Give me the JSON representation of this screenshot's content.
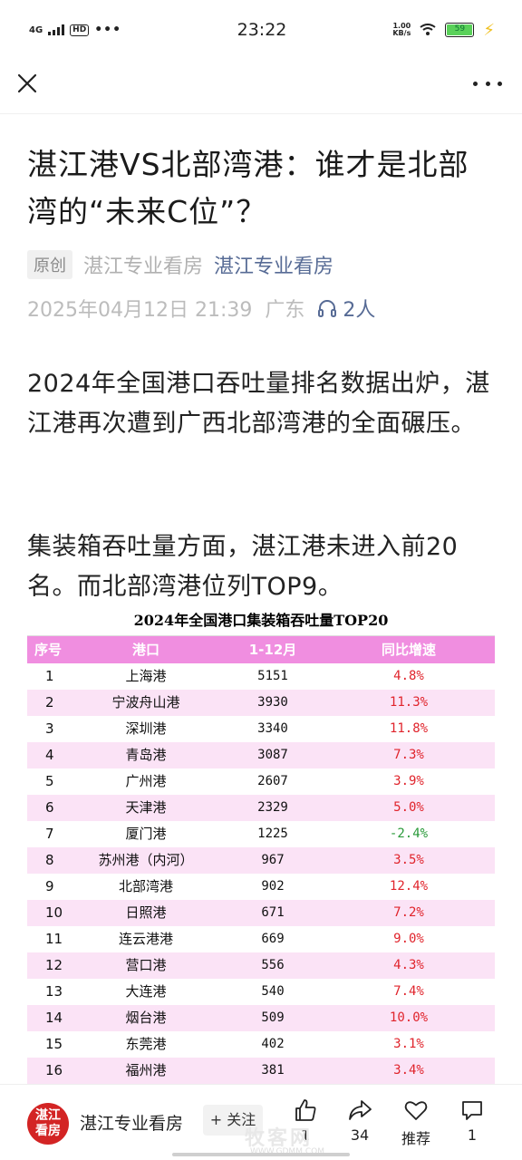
{
  "status_bar": {
    "network": "4G",
    "hd": "HD",
    "time": "23:22",
    "speed_value": "1.00",
    "speed_unit": "KB/s",
    "battery": "59"
  },
  "article": {
    "title": "湛江港VS北部湾港：谁才是北部湾的“未来C位”？",
    "original_tag": "原创",
    "author_plain": "湛江专业看房",
    "author_link": "湛江专业看房",
    "date": "2025年04月12日 21:39",
    "location": "广东",
    "listeners": "2人",
    "paragraph1": "2024年全国港口吞吐量排名数据出炉，湛江港再次遭到广西北部湾港的全面碾压。",
    "paragraph2": "集装箱吞吐量方面，湛江港未进入前20名。而北部湾港位列TOP9。"
  },
  "chart_data": {
    "type": "table",
    "title": "2024年全国港口集装箱吞吐量TOP20",
    "columns": [
      "序号",
      "港口",
      "1-12月",
      "同比增速"
    ],
    "rows": [
      [
        "1",
        "上海港",
        "5151",
        "4.8%"
      ],
      [
        "2",
        "宁波舟山港",
        "3930",
        "11.3%"
      ],
      [
        "3",
        "深圳港",
        "3340",
        "11.8%"
      ],
      [
        "4",
        "青岛港",
        "3087",
        "7.3%"
      ],
      [
        "5",
        "广州港",
        "2607",
        "3.9%"
      ],
      [
        "6",
        "天津港",
        "2329",
        "5.0%"
      ],
      [
        "7",
        "厦门港",
        "1225",
        "-2.4%"
      ],
      [
        "8",
        "苏州港（内河）",
        "967",
        "3.5%"
      ],
      [
        "9",
        "北部湾港",
        "902",
        "12.4%"
      ],
      [
        "10",
        "日照港",
        "671",
        "7.2%"
      ],
      [
        "11",
        "连云港港",
        "669",
        "9.0%"
      ],
      [
        "12",
        "营口港",
        "556",
        "4.3%"
      ],
      [
        "13",
        "大连港",
        "540",
        "7.4%"
      ],
      [
        "14",
        "烟台港",
        "509",
        "10.0%"
      ],
      [
        "15",
        "东莞港",
        "402",
        "3.1%"
      ],
      [
        "16",
        "福州港",
        "381",
        "3.4%"
      ]
    ],
    "colors": {
      "header": "#f08ee0",
      "alt_row": "#fbe3f6",
      "positive": "#e0242c",
      "negative": "#2a9a3a"
    }
  },
  "bottom_bar": {
    "avatar_text": "湛江看房",
    "author": "湛江专业看房",
    "follow_label": "+ 关注",
    "like_count": "1",
    "share_count": "34",
    "recommend_label": "推荐",
    "comment_count": "1"
  },
  "watermark": {
    "text": "牧客网",
    "sub": "WWW.GDMM.COM"
  }
}
